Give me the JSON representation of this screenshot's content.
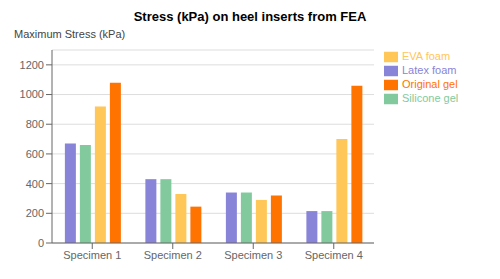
{
  "chart_data": {
    "type": "bar",
    "title": "Stress (kPa) on heel inserts from FEA",
    "ylabel": "Maximum Stress (kPa)",
    "categories": [
      "Specimen 1",
      "Specimen 2",
      "Specimen 3",
      "Specimen 4"
    ],
    "series": [
      {
        "name": "Latex foam",
        "color": "#8884d8",
        "values": [
          670,
          430,
          340,
          215
        ]
      },
      {
        "name": "Silicone gel",
        "color": "#82ca9d",
        "values": [
          660,
          430,
          340,
          215
        ]
      },
      {
        "name": "EVA foam",
        "color": "#ffc658",
        "values": [
          920,
          330,
          290,
          700
        ]
      },
      {
        "name": "Original gel",
        "color": "#ff7300",
        "values": [
          1080,
          245,
          320,
          1060
        ]
      }
    ],
    "ylim": [
      0,
      1300
    ],
    "yticks": [
      0,
      200,
      400,
      600,
      800,
      1000,
      1200
    ],
    "grid": true,
    "legend": "right"
  }
}
